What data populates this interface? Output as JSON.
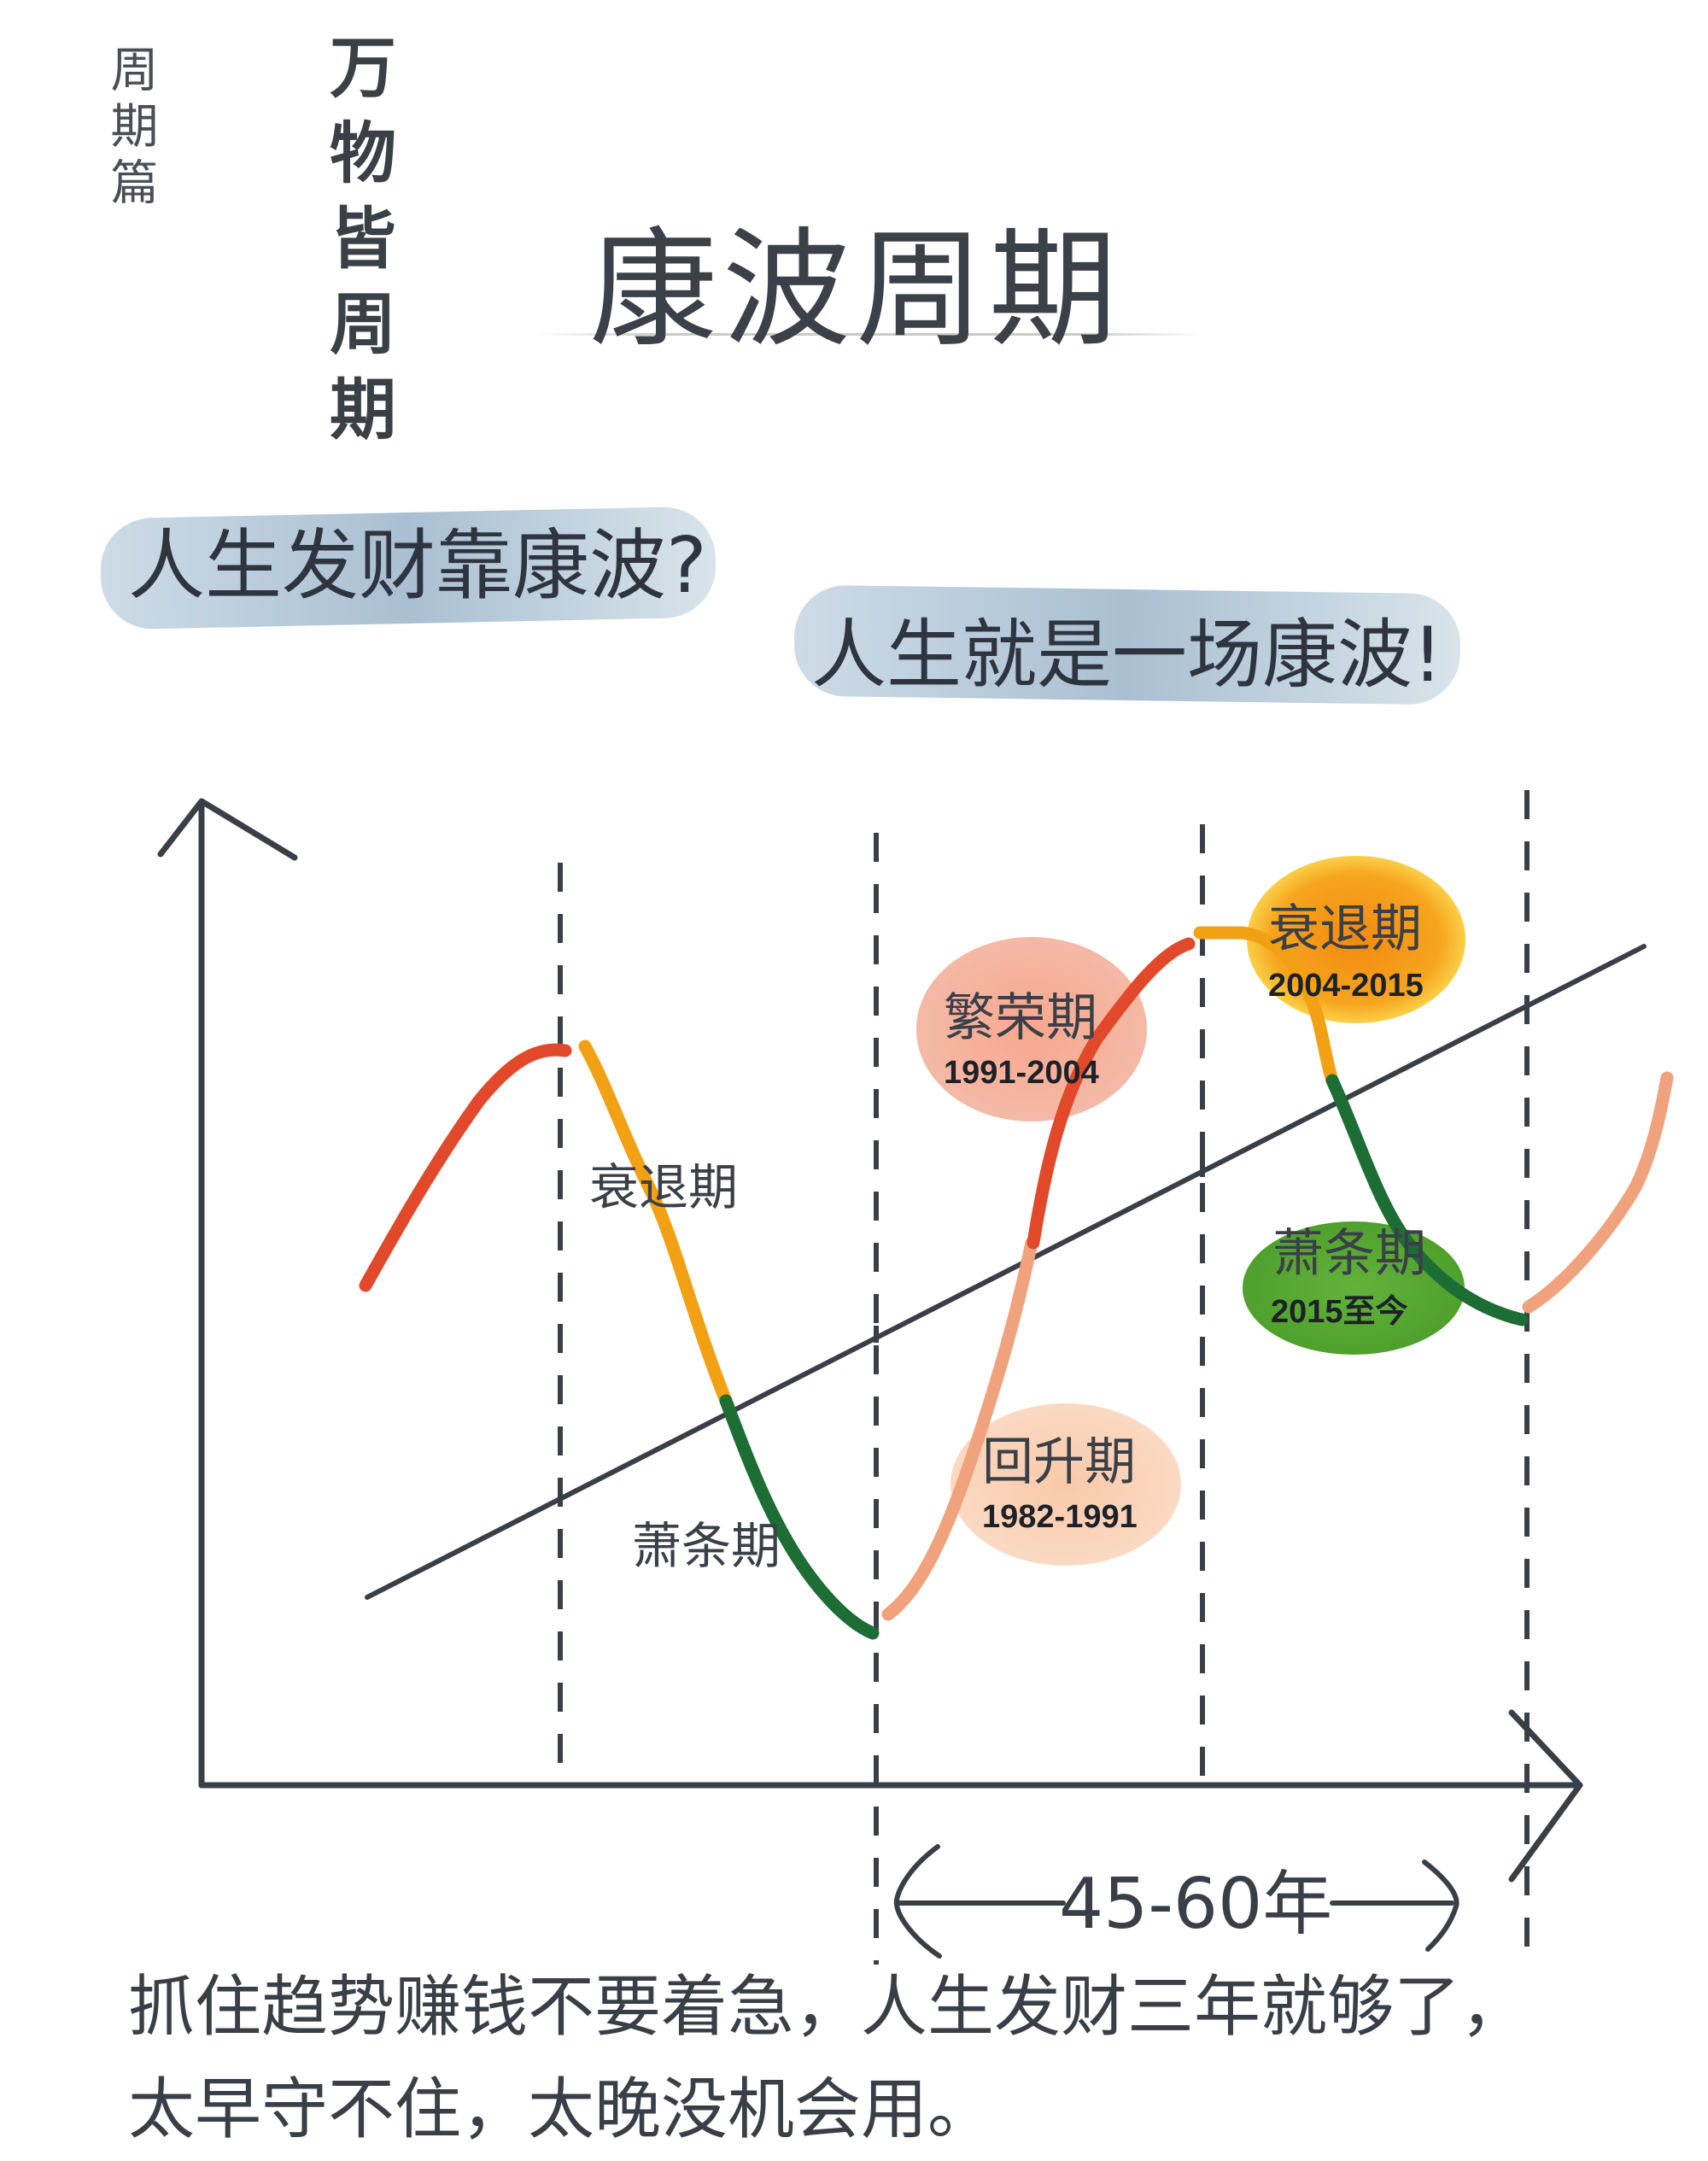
{
  "side": {
    "series_label": "周期篇",
    "tagline": "万物皆周期"
  },
  "title": "康波周期",
  "question": "人生发财靠康波?",
  "answer": "人生就是一场康波!",
  "chart": {
    "cycle1_labels": {
      "recession": "衰退期",
      "depression": "萧条期"
    },
    "cycle2_phases": [
      {
        "id": "recovery",
        "name": "回升期",
        "years": "1982-1991",
        "color": "#f5b48f"
      },
      {
        "id": "prosperity",
        "name": "繁荣期",
        "years": "1991-2004",
        "color": "#ee8a6e"
      },
      {
        "id": "recession",
        "name": "衰退期",
        "years": "2004-2015",
        "color": "#f2a40b"
      },
      {
        "id": "depression",
        "name": "萧条期",
        "years": "2015至今",
        "color": "#5cab36"
      }
    ],
    "span_label": "45-60年",
    "colors": {
      "prosperity_line": "#e2492a",
      "recession_line": "#f2a014",
      "depression_line": "#1d6e34",
      "recovery_line": "#f0a27c",
      "axis": "#3a3f47"
    }
  },
  "caption": {
    "line1": "抓住趋势赚钱不要着急，人生发财三年就够了，",
    "line2": "太早守不住，太晚没机会用。"
  }
}
